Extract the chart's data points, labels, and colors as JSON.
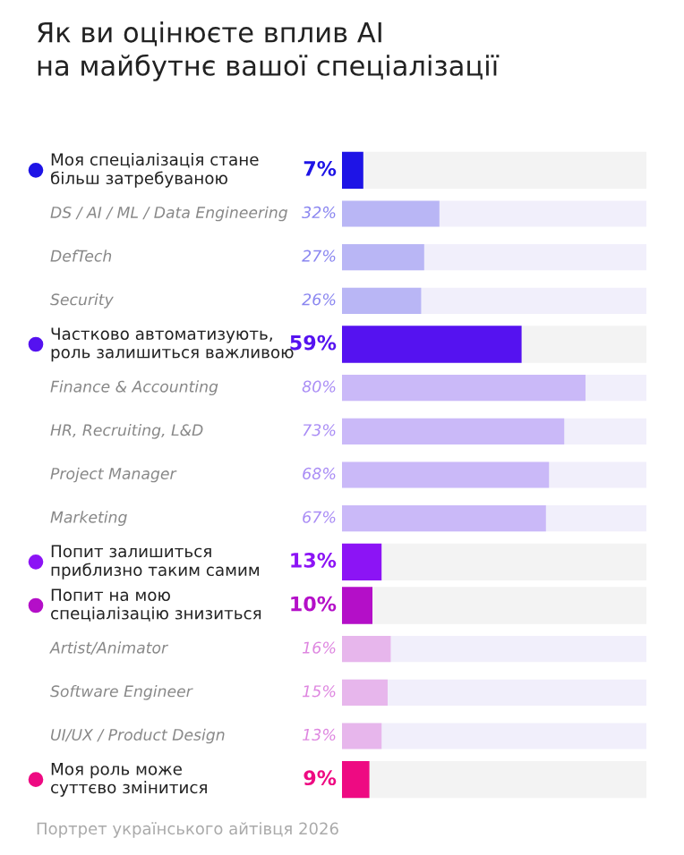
{
  "chart_data": {
    "type": "bar",
    "orientation": "horizontal",
    "title": "Як ви оцінюєте вплив AI\nна майбутнє вашої спеціалізації",
    "categories": [
      "Моя спеціалізація стане\nбільш затребуваною",
      "DS / AI / ML / Data Engineering",
      "DefTech",
      "Security",
      "Частково автоматизують,\nроль залишиться важливою",
      "Finance & Accounting",
      "HR, Recruiting, L&D",
      "Project Manager",
      "Marketing",
      "Попит залишиться\nприблизно таким самим",
      "Попит на мою\nспеціалізацію знизиться",
      "Artist/Animator",
      "Software Engineer",
      "UI/UX / Product Design",
      "Моя роль може\nсуттєво змінитися"
    ],
    "series": [
      {
        "colors": [
          "#1e14e6",
          null,
          null,
          null,
          "#5512f0",
          null,
          null,
          null,
          null,
          "#8c14f5",
          "#b40fc8",
          null,
          null,
          null,
          "#ee0a82"
        ],
        "values": [
          7,
          null,
          null,
          null,
          59,
          null,
          null,
          null,
          null,
          13,
          10,
          null,
          null,
          null,
          9
        ],
        "value_labels": [
          "7%",
          null,
          null,
          null,
          "59%",
          null,
          null,
          null,
          null,
          "13%",
          "10%",
          null,
          null,
          null,
          "9%"
        ]
      },
      {
        "colors": [
          null,
          "#8a86f0",
          "#8a86f0",
          "#8a86f0",
          null,
          "#a98cf5",
          "#a98cf5",
          "#a98cf5",
          "#a98cf5",
          null,
          null,
          "#de86e0",
          "#de86e0",
          "#de86e0",
          null
        ],
        "values": [
          null,
          32,
          27,
          26,
          null,
          80,
          73,
          68,
          67,
          null,
          null,
          16,
          15,
          13,
          null
        ],
        "value_labels": [
          null,
          "32%",
          "27%",
          "26%",
          null,
          "80%",
          "73%",
          "68%",
          "67%",
          null,
          null,
          "16%",
          "15%",
          "13%",
          null
        ]
      }
    ],
    "xlim": [
      0,
      100
    ],
    "legend": false,
    "annotations": [
      "Портрет українського айтівця 2026"
    ]
  }
}
